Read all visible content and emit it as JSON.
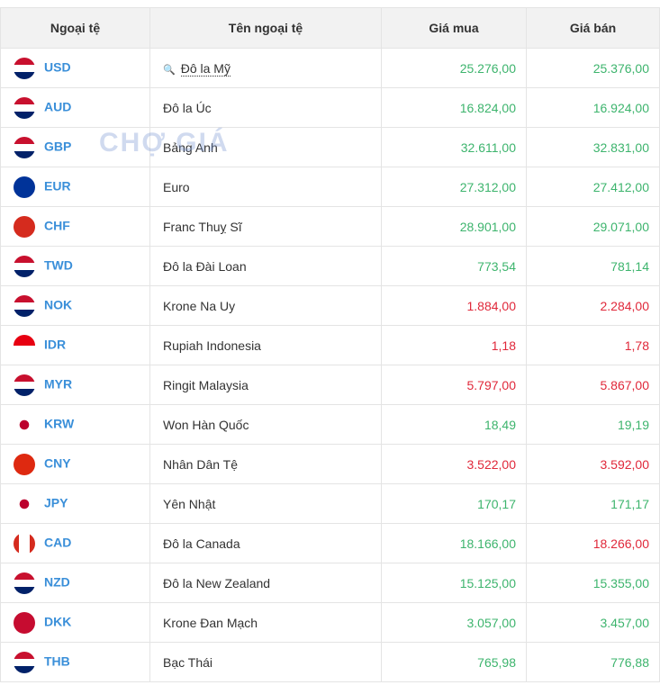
{
  "table": {
    "header": [
      "Ngoại tệ",
      "Tên ngoại tệ",
      "Giá mua",
      "Giá bán"
    ],
    "watermark": "CHỢ GIÁ",
    "rows": [
      {
        "code": "USD",
        "name": "Đô la Mỹ",
        "buy": "25.276,00",
        "sell": "25.376,00",
        "buy_color": "#3db46d",
        "sell_color": "#3db46d"
      },
      {
        "code": "AUD",
        "name": "Đô la Úc",
        "buy": "16.824,00",
        "sell": "16.924,00",
        "buy_color": "#3db46d",
        "sell_color": "#3db46d"
      },
      {
        "code": "GBP",
        "name": "Bảng Anh",
        "buy": "32.611,00",
        "sell": "32.831,00",
        "buy_color": "#3db46d",
        "sell_color": "#3db46d"
      },
      {
        "code": "EUR",
        "name": "Euro",
        "buy": "27.312,00",
        "sell": "27.412,00",
        "buy_color": "#3db46d",
        "sell_color": "#3db46d"
      },
      {
        "code": "CHF",
        "name": "Franc Thuỵ Sĩ",
        "buy": "28.901,00",
        "sell": "29.071,00",
        "buy_color": "#3db46d",
        "sell_color": "#3db46d"
      },
      {
        "code": "TWD",
        "name": "Đô la Đài Loan",
        "buy": "773,54",
        "sell": "781,14",
        "buy_color": "#3db46d",
        "sell_color": "#3db46d"
      },
      {
        "code": "NOK",
        "name": "Krone Na Uy",
        "buy": "1.884,00",
        "sell": "2.284,00",
        "buy_color": "#e0283a",
        "sell_color": "#e0283a"
      },
      {
        "code": "IDR",
        "name": "Rupiah Indonesia",
        "buy": "1,18",
        "sell": "1,78",
        "buy_color": "#e0283a",
        "sell_color": "#e0283a"
      },
      {
        "code": "MYR",
        "name": "Ringit Malaysia",
        "buy": "5.797,00",
        "sell": "5.867,00",
        "buy_color": "#e0283a",
        "sell_color": "#e0283a"
      },
      {
        "code": "KRW",
        "name": "Won Hàn Quốc",
        "buy": "18,49",
        "sell": "19,19",
        "buy_color": "#3db46d",
        "sell_color": "#3db46d"
      },
      {
        "code": "CNY",
        "name": "Nhân Dân Tệ",
        "buy": "3.522,00",
        "sell": "3.592,00",
        "buy_color": "#e0283a",
        "sell_color": "#e0283a"
      },
      {
        "code": "JPY",
        "name": "Yên Nhật",
        "buy": "170,17",
        "sell": "171,17",
        "buy_color": "#3db46d",
        "sell_color": "#3db46d"
      },
      {
        "code": "CAD",
        "name": "Đô la Canada",
        "buy": "18.166,00",
        "sell": "18.266,00",
        "buy_color": "#3db46d",
        "sell_color": "#e0283a"
      },
      {
        "code": "NZD",
        "name": "Đô la New Zealand",
        "buy": "15.125,00",
        "sell": "15.355,00",
        "buy_color": "#3db46d",
        "sell_color": "#3db46d"
      },
      {
        "code": "DKK",
        "name": "Krone Đan Mạch",
        "buy": "3.057,00",
        "sell": "3.457,00",
        "buy_color": "#3db46d",
        "sell_color": "#3db46d"
      },
      {
        "code": "THB",
        "name": "Bạc Thái",
        "buy": "765,98",
        "sell": "776,88",
        "buy_color": "#3db46d",
        "sell_color": "#3db46d"
      }
    ]
  }
}
